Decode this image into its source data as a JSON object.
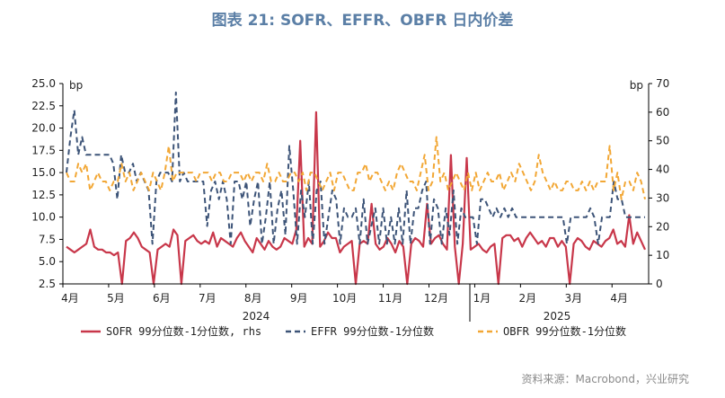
{
  "chart_data": {
    "type": "line",
    "title": "图表 21: SOFR、EFFR、OBFR 日内价差",
    "source": "资料来源：Macrobond，兴业研究",
    "left_axis": {
      "unit": "bp",
      "ylim": [
        2.5,
        25.0
      ],
      "ticks": [
        "2.5",
        "5.0",
        "7.5",
        "10.0",
        "12.5",
        "15.0",
        "17.5",
        "20.0",
        "22.5",
        "25.0"
      ]
    },
    "right_axis": {
      "unit": "bp",
      "ylim": [
        0,
        70
      ],
      "ticks": [
        "0",
        "10",
        "20",
        "30",
        "40",
        "50",
        "60",
        "70"
      ]
    },
    "x_month_labels": [
      "4月",
      "5月",
      "6月",
      "7月",
      "8月",
      "9月",
      "10月",
      "11月",
      "12月",
      "1月",
      "2月",
      "3月",
      "4月"
    ],
    "x_year_labels": [
      "2024",
      "2025"
    ],
    "series": [
      {
        "name": "SOFR 99分位数-1分位数, rhs",
        "axis": "right",
        "color": "#c8374a",
        "style": "solid",
        "values": [
          13,
          12,
          11,
          12,
          13,
          14,
          19,
          13,
          12,
          12,
          11,
          11,
          10,
          11,
          0,
          15,
          16,
          18,
          16,
          13,
          12,
          11,
          0,
          12,
          13,
          14,
          13,
          19,
          17,
          0,
          15,
          16,
          17,
          15,
          14,
          15,
          14,
          18,
          13,
          16,
          15,
          14,
          13,
          16,
          18,
          15,
          13,
          11,
          16,
          14,
          12,
          15,
          13,
          12,
          13,
          16,
          15,
          14,
          19,
          50,
          13,
          16,
          14,
          60,
          13,
          15,
          18,
          16,
          16,
          11,
          13,
          14,
          15,
          0,
          14,
          15,
          14,
          28,
          14,
          12,
          13,
          16,
          14,
          11,
          15,
          13,
          0,
          14,
          16,
          15,
          13,
          28,
          14,
          16,
          17,
          14,
          12,
          45,
          13,
          0,
          14,
          44,
          12,
          13,
          14,
          12,
          11,
          13,
          14,
          0,
          16,
          17,
          17,
          15,
          16,
          13,
          16,
          18,
          16,
          14,
          15,
          13,
          16,
          16,
          13,
          15,
          13,
          0,
          14,
          16,
          15,
          13,
          12,
          15,
          14,
          13,
          15,
          16,
          19,
          14,
          15,
          13,
          24,
          14,
          18,
          15,
          12
        ]
      },
      {
        "name": "EFFR 99分位数-1分位数",
        "axis": "left",
        "color": "#3d5478",
        "style": "dashed",
        "values": [
          15,
          19,
          22,
          17,
          19,
          17,
          17,
          17,
          17,
          17,
          17,
          17,
          16,
          12,
          17,
          15,
          15,
          16,
          14,
          15,
          14,
          13,
          7,
          14,
          15,
          15,
          15,
          14,
          24,
          14,
          15,
          14,
          14,
          14,
          14,
          14,
          9,
          13,
          14,
          12,
          14,
          12,
          7,
          14,
          14,
          12,
          14,
          9,
          12,
          14,
          7,
          10,
          14,
          7,
          11,
          13,
          8,
          18,
          13,
          7,
          13,
          10,
          14,
          7,
          13,
          14,
          7,
          10,
          13,
          12,
          7,
          11,
          10,
          10,
          11,
          7,
          12,
          7,
          9,
          11,
          7,
          11,
          7,
          10,
          7,
          11,
          7,
          13,
          7,
          11,
          11,
          13,
          14,
          7,
          12,
          11,
          7,
          11,
          8,
          13,
          7,
          11,
          10,
          10,
          10,
          7,
          12,
          12,
          11,
          10,
          11,
          10,
          11,
          10,
          11,
          10,
          10,
          10,
          10,
          10,
          10,
          10,
          10,
          10,
          10,
          10,
          10,
          10,
          7,
          10,
          10,
          10,
          10,
          10,
          11,
          10,
          7,
          10,
          10,
          10,
          14,
          12,
          12,
          10,
          10,
          10,
          10,
          10,
          10
        ]
      },
      {
        "name": "OBFR 99分位数-1分位数",
        "axis": "left",
        "color": "#f2a735",
        "style": "dashed",
        "values": [
          15,
          14,
          14,
          16,
          15,
          16,
          13,
          14,
          15,
          14,
          14,
          13,
          14,
          14,
          16,
          14,
          15,
          13,
          14,
          15,
          14,
          13,
          15,
          14,
          13,
          15,
          18,
          14,
          15,
          15,
          15,
          15,
          15,
          14,
          15,
          15,
          15,
          14,
          15,
          15,
          14,
          14,
          15,
          15,
          15,
          14,
          15,
          14,
          15,
          15,
          14,
          16,
          14,
          14,
          15,
          14,
          14,
          15,
          15,
          14,
          15,
          13,
          15,
          15,
          14,
          13,
          14,
          15,
          13,
          15,
          15,
          14,
          13,
          13,
          15,
          15,
          16,
          14,
          15,
          15,
          14,
          13,
          14,
          13,
          15,
          16,
          15,
          14,
          14,
          13,
          15,
          17,
          13,
          14,
          19,
          14,
          15,
          13,
          14,
          15,
          14,
          13,
          15,
          13,
          15,
          13,
          14,
          15,
          14,
          14,
          15,
          13,
          14,
          15,
          14,
          16,
          15,
          14,
          13,
          14,
          17,
          15,
          14,
          13,
          14,
          13,
          13,
          14,
          14,
          13,
          13,
          14,
          13,
          14,
          13,
          14,
          14,
          14,
          18,
          13,
          15,
          12,
          14,
          14,
          13,
          15,
          14,
          12
        ]
      }
    ]
  }
}
